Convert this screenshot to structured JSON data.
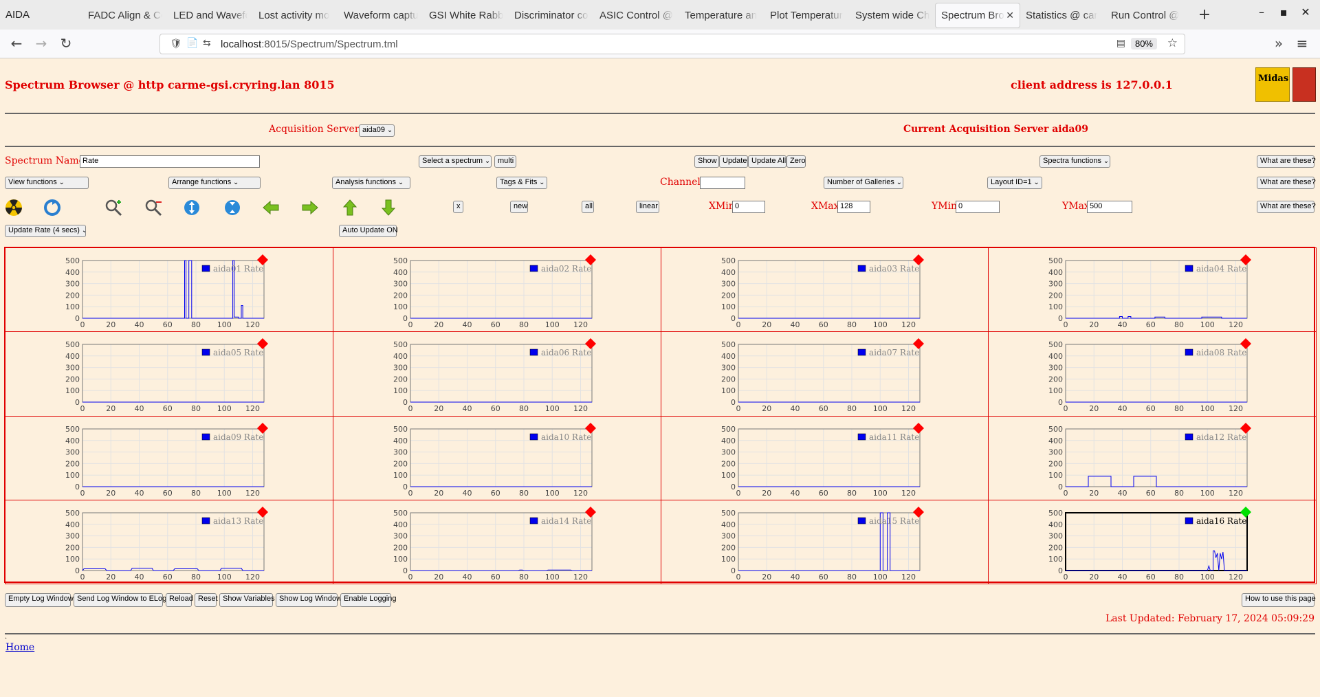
{
  "browser": {
    "app_name": "AIDA",
    "tabs": [
      {
        "label": "FADC Align & Co",
        "active": false
      },
      {
        "label": "LED and Wavefo",
        "active": false
      },
      {
        "label": "Lost activity mo",
        "active": false
      },
      {
        "label": "Waveform captu",
        "active": false
      },
      {
        "label": "GSI White Rabbi",
        "active": false
      },
      {
        "label": "Discriminator co",
        "active": false
      },
      {
        "label": "ASIC Control @",
        "active": false
      },
      {
        "label": "Temperature an",
        "active": false
      },
      {
        "label": "Plot Temperatur",
        "active": false
      },
      {
        "label": "System wide Ch",
        "active": false
      },
      {
        "label": "Spectrum Bro",
        "active": true
      },
      {
        "label": "Statistics @ car",
        "active": false
      },
      {
        "label": "Run Control @",
        "active": false
      }
    ],
    "url_host": "localhost",
    "url_path": ":8015/Spectrum/Spectrum.tml",
    "zoom": "80%"
  },
  "header": {
    "title": "Spectrum Browser @ http carme-gsi.cryring.lan 8015",
    "client_address": "client address is 127.0.0.1",
    "logo_text": "Midas"
  },
  "acq": {
    "servers_label": "Acquisition Servers",
    "server_select": "aida09",
    "current_server": "Current Acquisition Server aida09"
  },
  "controls": {
    "spectrum_name_label": "Spectrum Name:",
    "spectrum_name_value": "Rate",
    "select_spectrum": "Select a spectrum",
    "multi": "multi",
    "show": "Show",
    "update": "Update",
    "update_all": "Update All",
    "zero": "Zero",
    "spectra_functions": "Spectra functions",
    "what": "What are these?",
    "view_functions": "View functions",
    "arrange_functions": "Arrange functions",
    "analysis_functions": "Analysis functions",
    "tags_fits": "Tags & Fits",
    "channel_label": "Channel:",
    "channel_value": "",
    "galleries": "Number of Galleries",
    "layout": "Layout ID=1",
    "x_btn": "x",
    "new_btn": "new",
    "all_btn": "all",
    "linear_btn": "linear",
    "xmin_label": "XMin",
    "xmin": "0",
    "xmax_label": "XMax",
    "xmax": "128",
    "ymin_label": "YMin",
    "ymin": "0",
    "ymax_label": "YMax",
    "ymax": "500",
    "update_rate": "Update Rate (4 secs)",
    "auto_update": "Auto Update ON"
  },
  "bottom": {
    "buttons": [
      "Empty Log Window",
      "Send Log Window to ELog",
      "Reload",
      "Reset",
      "Show Variables",
      "Show Log Window",
      "Enable Logging"
    ],
    "howto": "How to use this page",
    "last_updated": "Last Updated: February 17, 2024 05:09:29",
    "dot": ".",
    "home": "Home"
  },
  "colors": {
    "accent": "#e00000",
    "series": "#0000ee",
    "marker_red": "#ff0000",
    "marker_green": "#00e000"
  },
  "chart_data": [
    {
      "type": "line",
      "series": [
        {
          "name": "aida01 Rate",
          "points": [
            [
              0,
              0
            ],
            [
              72,
              0
            ],
            [
              72,
              500
            ],
            [
              73,
              500
            ],
            [
              73,
              0
            ],
            [
              75,
              0
            ],
            [
              75,
              500
            ],
            [
              77,
              500
            ],
            [
              77,
              0
            ],
            [
              106,
              0
            ],
            [
              106,
              500
            ],
            [
              107,
              500
            ],
            [
              107,
              10
            ],
            [
              110,
              10
            ],
            [
              110,
              0
            ],
            [
              112,
              0
            ],
            [
              112,
              110
            ],
            [
              113,
              110
            ],
            [
              113,
              0
            ],
            [
              128,
              0
            ]
          ]
        }
      ],
      "xlim": [
        0,
        128
      ],
      "ylim": [
        0,
        500
      ],
      "xticks": [
        0,
        20,
        40,
        60,
        80,
        100,
        120
      ],
      "yticks": [
        0,
        100,
        200,
        300,
        400,
        500
      ],
      "marker": "red"
    },
    {
      "type": "line",
      "series": [
        {
          "name": "aida02 Rate",
          "points": [
            [
              0,
              0
            ],
            [
              128,
              0
            ]
          ]
        }
      ],
      "xlim": [
        0,
        128
      ],
      "ylim": [
        0,
        500
      ],
      "xticks": [
        0,
        20,
        40,
        60,
        80,
        100,
        120
      ],
      "yticks": [
        0,
        100,
        200,
        300,
        400,
        500
      ],
      "marker": "red"
    },
    {
      "type": "line",
      "series": [
        {
          "name": "aida03 Rate",
          "points": [
            [
              0,
              0
            ],
            [
              128,
              0
            ]
          ]
        }
      ],
      "xlim": [
        0,
        128
      ],
      "ylim": [
        0,
        500
      ],
      "xticks": [
        0,
        20,
        40,
        60,
        80,
        100,
        120
      ],
      "yticks": [
        0,
        100,
        200,
        300,
        400,
        500
      ],
      "marker": "red"
    },
    {
      "type": "line",
      "series": [
        {
          "name": "aida04 Rate",
          "points": [
            [
              0,
              0
            ],
            [
              38,
              0
            ],
            [
              38,
              15
            ],
            [
              40,
              15
            ],
            [
              40,
              0
            ],
            [
              44,
              0
            ],
            [
              44,
              15
            ],
            [
              46,
              15
            ],
            [
              46,
              0
            ],
            [
              63,
              0
            ],
            [
              63,
              10
            ],
            [
              70,
              10
            ],
            [
              70,
              0
            ],
            [
              96,
              0
            ],
            [
              96,
              10
            ],
            [
              110,
              10
            ],
            [
              110,
              0
            ],
            [
              128,
              0
            ]
          ]
        }
      ],
      "xlim": [
        0,
        128
      ],
      "ylim": [
        0,
        500
      ],
      "xticks": [
        0,
        20,
        40,
        60,
        80,
        100,
        120
      ],
      "yticks": [
        0,
        100,
        200,
        300,
        400,
        500
      ],
      "marker": "red"
    },
    {
      "type": "line",
      "series": [
        {
          "name": "aida05 Rate",
          "points": [
            [
              0,
              0
            ],
            [
              128,
              0
            ]
          ]
        }
      ],
      "xlim": [
        0,
        128
      ],
      "ylim": [
        0,
        500
      ],
      "xticks": [
        0,
        20,
        40,
        60,
        80,
        100,
        120
      ],
      "yticks": [
        0,
        100,
        200,
        300,
        400,
        500
      ],
      "marker": "red"
    },
    {
      "type": "line",
      "series": [
        {
          "name": "aida06 Rate",
          "points": [
            [
              0,
              0
            ],
            [
              128,
              0
            ]
          ]
        }
      ],
      "xlim": [
        0,
        128
      ],
      "ylim": [
        0,
        500
      ],
      "xticks": [
        0,
        20,
        40,
        60,
        80,
        100,
        120
      ],
      "yticks": [
        0,
        100,
        200,
        300,
        400,
        500
      ],
      "marker": "red"
    },
    {
      "type": "line",
      "series": [
        {
          "name": "aida07 Rate",
          "points": [
            [
              0,
              0
            ],
            [
              128,
              0
            ]
          ]
        }
      ],
      "xlim": [
        0,
        128
      ],
      "ylim": [
        0,
        500
      ],
      "xticks": [
        0,
        20,
        40,
        60,
        80,
        100,
        120
      ],
      "yticks": [
        0,
        100,
        200,
        300,
        400,
        500
      ],
      "marker": "red"
    },
    {
      "type": "line",
      "series": [
        {
          "name": "aida08 Rate",
          "points": [
            [
              0,
              0
            ],
            [
              128,
              0
            ]
          ]
        }
      ],
      "xlim": [
        0,
        128
      ],
      "ylim": [
        0,
        500
      ],
      "xticks": [
        0,
        20,
        40,
        60,
        80,
        100,
        120
      ],
      "yticks": [
        0,
        100,
        200,
        300,
        400,
        500
      ],
      "marker": "red"
    },
    {
      "type": "line",
      "series": [
        {
          "name": "aida09 Rate",
          "points": [
            [
              0,
              0
            ],
            [
              128,
              0
            ]
          ]
        }
      ],
      "xlim": [
        0,
        128
      ],
      "ylim": [
        0,
        500
      ],
      "xticks": [
        0,
        20,
        40,
        60,
        80,
        100,
        120
      ],
      "yticks": [
        0,
        100,
        200,
        300,
        400,
        500
      ],
      "marker": "red"
    },
    {
      "type": "line",
      "series": [
        {
          "name": "aida10 Rate",
          "points": [
            [
              0,
              0
            ],
            [
              128,
              0
            ]
          ]
        }
      ],
      "xlim": [
        0,
        128
      ],
      "ylim": [
        0,
        500
      ],
      "xticks": [
        0,
        20,
        40,
        60,
        80,
        100,
        120
      ],
      "yticks": [
        0,
        100,
        200,
        300,
        400,
        500
      ],
      "marker": "red"
    },
    {
      "type": "line",
      "series": [
        {
          "name": "aida11 Rate",
          "points": [
            [
              0,
              0
            ],
            [
              128,
              0
            ]
          ]
        }
      ],
      "xlim": [
        0,
        128
      ],
      "ylim": [
        0,
        500
      ],
      "xticks": [
        0,
        20,
        40,
        60,
        80,
        100,
        120
      ],
      "yticks": [
        0,
        100,
        200,
        300,
        400,
        500
      ],
      "marker": "red"
    },
    {
      "type": "line",
      "series": [
        {
          "name": "aida12 Rate",
          "points": [
            [
              0,
              0
            ],
            [
              16,
              0
            ],
            [
              16,
              90
            ],
            [
              32,
              90
            ],
            [
              32,
              0
            ],
            [
              48,
              0
            ],
            [
              48,
              90
            ],
            [
              64,
              90
            ],
            [
              64,
              0
            ],
            [
              128,
              0
            ]
          ]
        }
      ],
      "xlim": [
        0,
        128
      ],
      "ylim": [
        0,
        500
      ],
      "xticks": [
        0,
        20,
        40,
        60,
        80,
        100,
        120
      ],
      "yticks": [
        0,
        100,
        200,
        300,
        400,
        500
      ],
      "marker": "red"
    },
    {
      "type": "line",
      "series": [
        {
          "name": "aida13 Rate",
          "points": [
            [
              0,
              0
            ],
            [
              1,
              15
            ],
            [
              16,
              15
            ],
            [
              17,
              0
            ],
            [
              34,
              0
            ],
            [
              35,
              20
            ],
            [
              49,
              20
            ],
            [
              50,
              0
            ],
            [
              64,
              0
            ],
            [
              65,
              15
            ],
            [
              81,
              15
            ],
            [
              82,
              0
            ],
            [
              97,
              0
            ],
            [
              98,
              20
            ],
            [
              112,
              20
            ],
            [
              113,
              0
            ],
            [
              128,
              0
            ]
          ]
        }
      ],
      "xlim": [
        0,
        128
      ],
      "ylim": [
        0,
        500
      ],
      "xticks": [
        0,
        20,
        40,
        60,
        80,
        100,
        120
      ],
      "yticks": [
        0,
        100,
        200,
        300,
        400,
        500
      ],
      "marker": "red"
    },
    {
      "type": "line",
      "series": [
        {
          "name": "aida14 Rate",
          "points": [
            [
              0,
              0
            ],
            [
              76,
              0
            ],
            [
              77,
              5
            ],
            [
              79,
              5
            ],
            [
              80,
              0
            ],
            [
              96,
              0
            ],
            [
              97,
              5
            ],
            [
              113,
              5
            ],
            [
              114,
              0
            ],
            [
              128,
              0
            ]
          ]
        }
      ],
      "xlim": [
        0,
        128
      ],
      "ylim": [
        0,
        500
      ],
      "xticks": [
        0,
        20,
        40,
        60,
        80,
        100,
        120
      ],
      "yticks": [
        0,
        100,
        200,
        300,
        400,
        500
      ],
      "marker": "red"
    },
    {
      "type": "line",
      "series": [
        {
          "name": "aida15 Rate",
          "points": [
            [
              0,
              0
            ],
            [
              100,
              0
            ],
            [
              100,
              500
            ],
            [
              102,
              500
            ],
            [
              102,
              0
            ],
            [
              105,
              0
            ],
            [
              105,
              500
            ],
            [
              107,
              500
            ],
            [
              107,
              0
            ],
            [
              128,
              0
            ]
          ]
        }
      ],
      "xlim": [
        0,
        128
      ],
      "ylim": [
        0,
        500
      ],
      "xticks": [
        0,
        20,
        40,
        60,
        80,
        100,
        120
      ],
      "yticks": [
        0,
        100,
        200,
        300,
        400,
        500
      ],
      "marker": "red"
    },
    {
      "type": "line",
      "series": [
        {
          "name": "aida16 Rate",
          "points": [
            [
              0,
              0
            ],
            [
              100,
              0
            ],
            [
              101,
              40
            ],
            [
              102,
              0
            ],
            [
              104,
              0
            ],
            [
              104,
              170
            ],
            [
              105,
              170
            ],
            [
              106,
              110
            ],
            [
              107,
              150
            ],
            [
              108,
              0
            ],
            [
              109,
              150
            ],
            [
              110,
              100
            ],
            [
              111,
              160
            ],
            [
              112,
              0
            ],
            [
              128,
              0
            ]
          ]
        }
      ],
      "xlim": [
        0,
        128
      ],
      "ylim": [
        0,
        500
      ],
      "xticks": [
        0,
        20,
        40,
        60,
        80,
        100,
        120
      ],
      "yticks": [
        0,
        100,
        200,
        300,
        400,
        500
      ],
      "marker": "green"
    }
  ]
}
